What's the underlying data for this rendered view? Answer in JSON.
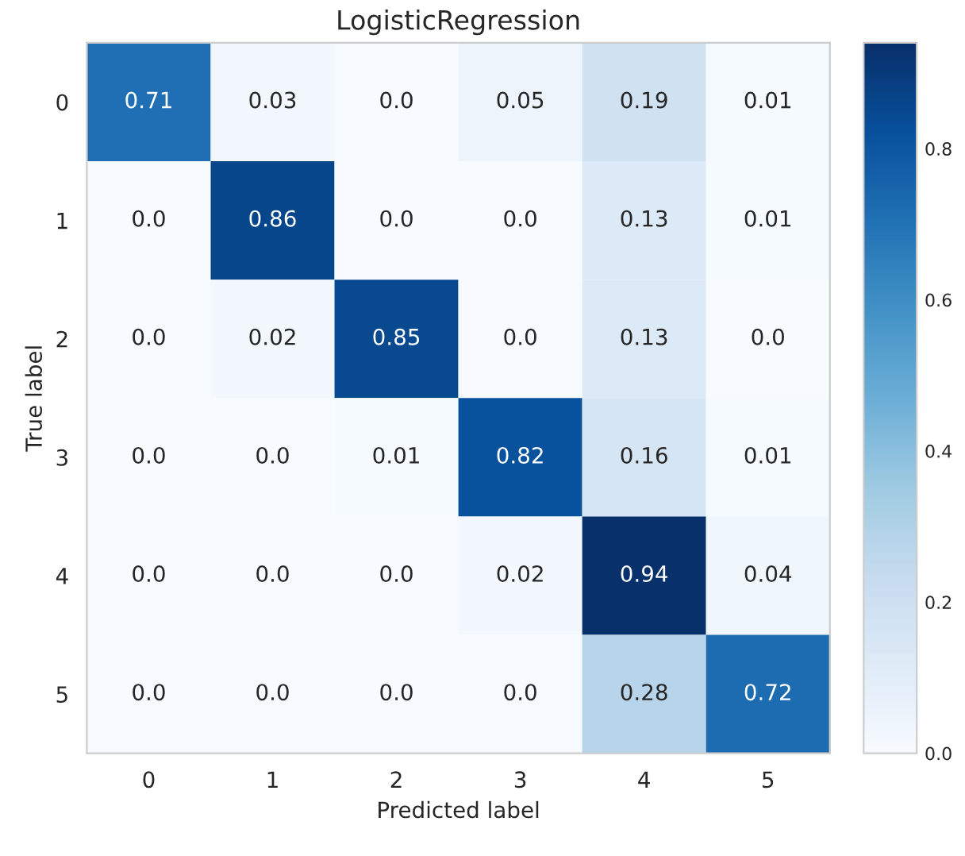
{
  "chart_data": {
    "type": "heatmap",
    "title": "LogisticRegression",
    "xlabel": "Predicted label",
    "ylabel": "True label",
    "categories": [
      "0",
      "1",
      "2",
      "3",
      "4",
      "5"
    ],
    "y_categories": [
      "0",
      "1",
      "2",
      "3",
      "4",
      "5"
    ],
    "cells": [
      [
        0.71,
        0.03,
        0.0,
        0.05,
        0.19,
        0.01
      ],
      [
        0.0,
        0.86,
        0.0,
        0.0,
        0.13,
        0.01
      ],
      [
        0.0,
        0.02,
        0.85,
        0.0,
        0.13,
        0.0
      ],
      [
        0.0,
        0.0,
        0.01,
        0.82,
        0.16,
        0.01
      ],
      [
        0.0,
        0.0,
        0.0,
        0.02,
        0.94,
        0.04
      ],
      [
        0.0,
        0.0,
        0.0,
        0.0,
        0.28,
        0.72
      ]
    ],
    "cell_labels": [
      [
        "0.71",
        "0.03",
        "0.0",
        "0.05",
        "0.19",
        "0.01"
      ],
      [
        "0.0",
        "0.86",
        "0.0",
        "0.0",
        "0.13",
        "0.01"
      ],
      [
        "0.0",
        "0.02",
        "0.85",
        "0.0",
        "0.13",
        "0.0"
      ],
      [
        "0.0",
        "0.0",
        "0.01",
        "0.82",
        "0.16",
        "0.01"
      ],
      [
        "0.0",
        "0.0",
        "0.0",
        "0.02",
        "0.94",
        "0.04"
      ],
      [
        "0.0",
        "0.0",
        "0.0",
        "0.0",
        "0.28",
        "0.72"
      ]
    ],
    "clim": [
      0,
      0.94
    ],
    "cticks": [
      {
        "value": 0,
        "label": "0.0"
      },
      {
        "value": 0.2,
        "label": "0.2"
      },
      {
        "value": 0.4,
        "label": "0.4"
      },
      {
        "value": 0.6,
        "label": "0.6"
      },
      {
        "value": 0.8,
        "label": "0.8"
      }
    ]
  }
}
